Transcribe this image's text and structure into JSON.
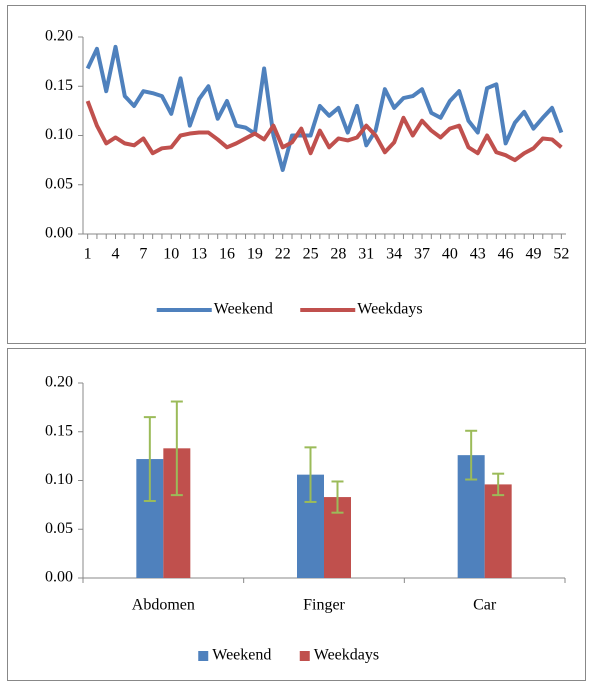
{
  "chart_data": [
    {
      "type": "line",
      "x": [
        1,
        2,
        3,
        4,
        5,
        6,
        7,
        8,
        9,
        10,
        11,
        12,
        13,
        14,
        15,
        16,
        17,
        18,
        19,
        20,
        21,
        22,
        23,
        24,
        25,
        26,
        27,
        28,
        29,
        30,
        31,
        32,
        33,
        34,
        35,
        36,
        37,
        38,
        39,
        40,
        41,
        42,
        43,
        44,
        45,
        46,
        47,
        48,
        49,
        50,
        51,
        52
      ],
      "xlim": [
        0.5,
        52.5
      ],
      "xticks": [
        1,
        4,
        7,
        10,
        13,
        16,
        19,
        22,
        25,
        28,
        31,
        34,
        37,
        40,
        43,
        46,
        49,
        52
      ],
      "ylim": [
        0,
        0.2
      ],
      "yticks": [
        {
          "value": 0,
          "label": "0.00"
        },
        {
          "value": 0.05,
          "label": "0.05"
        },
        {
          "value": 0.1,
          "label": "0.10"
        },
        {
          "value": 0.15,
          "label": "0.15"
        },
        {
          "value": 0.2,
          "label": "0.20"
        }
      ],
      "legend": "bottom",
      "series": [
        {
          "name": "Weekend",
          "color": "#4f81bd",
          "values": [
            0.168,
            0.188,
            0.145,
            0.19,
            0.14,
            0.13,
            0.145,
            0.143,
            0.14,
            0.122,
            0.158,
            0.11,
            0.137,
            0.15,
            0.117,
            0.135,
            0.11,
            0.108,
            0.102,
            0.168,
            0.1,
            0.065,
            0.1,
            0.1,
            0.1,
            0.13,
            0.12,
            0.128,
            0.103,
            0.13,
            0.09,
            0.105,
            0.147,
            0.128,
            0.138,
            0.14,
            0.147,
            0.123,
            0.118,
            0.135,
            0.145,
            0.115,
            0.103,
            0.148,
            0.152,
            0.092,
            0.113,
            0.124,
            0.107,
            0.118,
            0.128,
            0.103
          ]
        },
        {
          "name": "Weekdays",
          "color": "#c0504d",
          "values": [
            0.135,
            0.11,
            0.092,
            0.098,
            0.092,
            0.09,
            0.097,
            0.082,
            0.087,
            0.088,
            0.1,
            0.102,
            0.103,
            0.103,
            0.096,
            0.088,
            0.092,
            0.097,
            0.102,
            0.096,
            0.11,
            0.088,
            0.093,
            0.107,
            0.082,
            0.105,
            0.088,
            0.097,
            0.095,
            0.098,
            0.11,
            0.1,
            0.083,
            0.093,
            0.118,
            0.1,
            0.115,
            0.105,
            0.098,
            0.107,
            0.11,
            0.088,
            0.082,
            0.1,
            0.083,
            0.08,
            0.075,
            0.082,
            0.087,
            0.097,
            0.096,
            0.088
          ]
        }
      ]
    },
    {
      "type": "bar",
      "categories": [
        "Abdomen",
        "Finger",
        "Car"
      ],
      "ylim": [
        0,
        0.2
      ],
      "yticks": [
        {
          "value": 0,
          "label": "0.00"
        },
        {
          "value": 0.05,
          "label": "0.05"
        },
        {
          "value": 0.1,
          "label": "0.10"
        },
        {
          "value": 0.15,
          "label": "0.15"
        },
        {
          "value": 0.2,
          "label": "0.20"
        }
      ],
      "legend": "bottom",
      "error_color": "#9bbb59",
      "series": [
        {
          "name": "Weekend",
          "color": "#4f81bd",
          "values": [
            0.122,
            0.106,
            0.126
          ],
          "errors": [
            0.043,
            0.028,
            0.025
          ]
        },
        {
          "name": "Weekdays",
          "color": "#c0504d",
          "values": [
            0.133,
            0.083,
            0.096
          ],
          "errors": [
            0.048,
            0.016,
            0.011
          ]
        }
      ]
    }
  ]
}
